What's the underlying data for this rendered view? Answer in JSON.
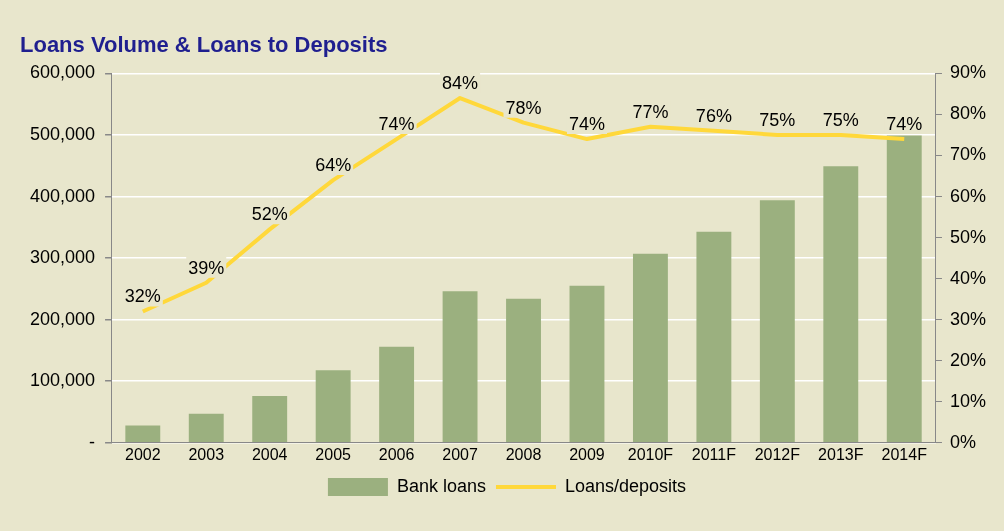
{
  "chart_data": {
    "type": "bar",
    "title": "Loans Volume & Loans to Deposits",
    "categories": [
      "2002",
      "2003",
      "2004",
      "2005",
      "2006",
      "2007",
      "2008",
      "2009",
      "2010F",
      "2011F",
      "2012F",
      "2013F",
      "2014F"
    ],
    "series": [
      {
        "name": "Bank loans",
        "color": "#9bb07f",
        "values": [
          28000,
          47000,
          76000,
          118000,
          156000,
          246000,
          234000,
          255000,
          307000,
          343000,
          394000,
          449000,
          499000
        ]
      },
      {
        "name": "Loans/deposits",
        "type": "line",
        "axis": "y2",
        "color": "#ffd83a",
        "values": [
          32,
          39,
          52,
          64,
          74,
          84,
          78,
          74,
          77,
          76,
          75,
          75,
          74
        ],
        "value_labels": [
          "32%",
          "39%",
          "52%",
          "64%",
          "74%",
          "84%",
          "78%",
          "74%",
          "77%",
          "76%",
          "75%",
          "75%",
          "74%"
        ]
      }
    ],
    "ylim": [
      0,
      600000
    ],
    "yticks": [
      {
        "value": 0,
        "label": "-"
      },
      {
        "value": 100000,
        "label": "100,000"
      },
      {
        "value": 200000,
        "label": "200,000"
      },
      {
        "value": 300000,
        "label": "300,000"
      },
      {
        "value": 400000,
        "label": "400,000"
      },
      {
        "value": 500000,
        "label": "500,000"
      },
      {
        "value": 600000,
        "label": "600,000"
      }
    ],
    "y2lim": [
      0,
      90
    ],
    "y2ticks": [
      {
        "value": 0,
        "label": "0%"
      },
      {
        "value": 10,
        "label": "10%"
      },
      {
        "value": 20,
        "label": "20%"
      },
      {
        "value": 30,
        "label": "30%"
      },
      {
        "value": 40,
        "label": "40%"
      },
      {
        "value": 50,
        "label": "50%"
      },
      {
        "value": 60,
        "label": "60%"
      },
      {
        "value": 70,
        "label": "70%"
      },
      {
        "value": 80,
        "label": "80%"
      },
      {
        "value": 90,
        "label": "90%"
      }
    ],
    "grid": "y",
    "legend": "bottom",
    "marker": "none"
  }
}
